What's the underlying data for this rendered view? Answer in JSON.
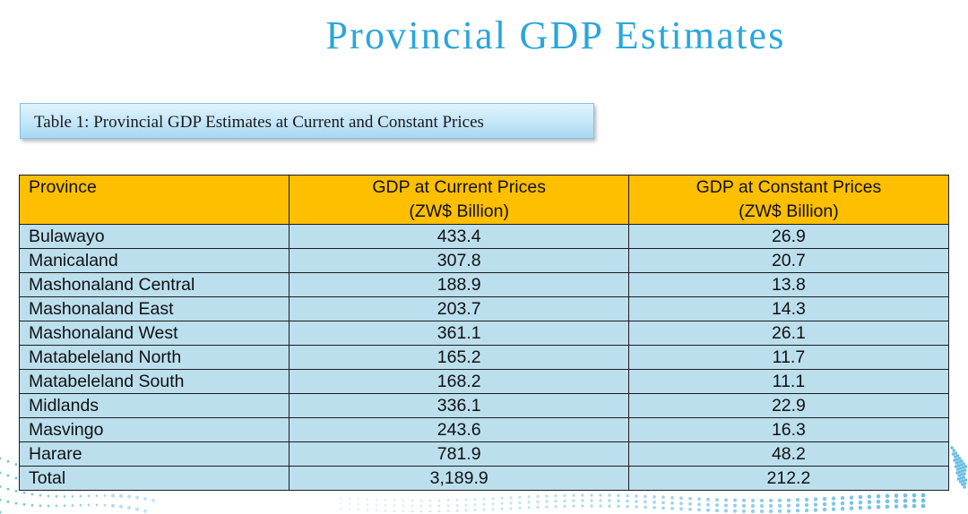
{
  "page": {
    "title": "Provincial GDP Estimates",
    "caption": "Table 1: Provincial GDP Estimates at Current and Constant Prices",
    "colors": {
      "title": "#2aa6dc",
      "header_bg": "#fdbf00",
      "row_bg": "#bcdfee"
    }
  },
  "table": {
    "headers": [
      {
        "line1": "Province",
        "line2": ""
      },
      {
        "line1": "GDP at Current Prices",
        "line2": "(ZW$ Billion)"
      },
      {
        "line1": "GDP at Constant Prices",
        "line2": "(ZW$ Billion)"
      }
    ],
    "rows": [
      {
        "province": "Bulawayo",
        "current": "433.4",
        "constant": "26.9"
      },
      {
        "province": "Manicaland",
        "current": "307.8",
        "constant": "20.7"
      },
      {
        "province": "Mashonaland Central",
        "current": "188.9",
        "constant": "13.8"
      },
      {
        "province": "Mashonaland East",
        "current": "203.7",
        "constant": "14.3"
      },
      {
        "province": "Mashonaland West",
        "current": "361.1",
        "constant": "26.1"
      },
      {
        "province": "Matabeleland North",
        "current": "165.2",
        "constant": "11.7"
      },
      {
        "province": "Matabeleland South",
        "current": "168.2",
        "constant": "11.1"
      },
      {
        "province": "Midlands",
        "current": "336.1",
        "constant": "22.9"
      },
      {
        "province": "Masvingo",
        "current": "243.6",
        "constant": "16.3"
      },
      {
        "province": "Harare",
        "current": "781.9",
        "constant": "48.2"
      },
      {
        "province": "Total",
        "current": "3,189.9",
        "constant": "212.2"
      }
    ]
  }
}
